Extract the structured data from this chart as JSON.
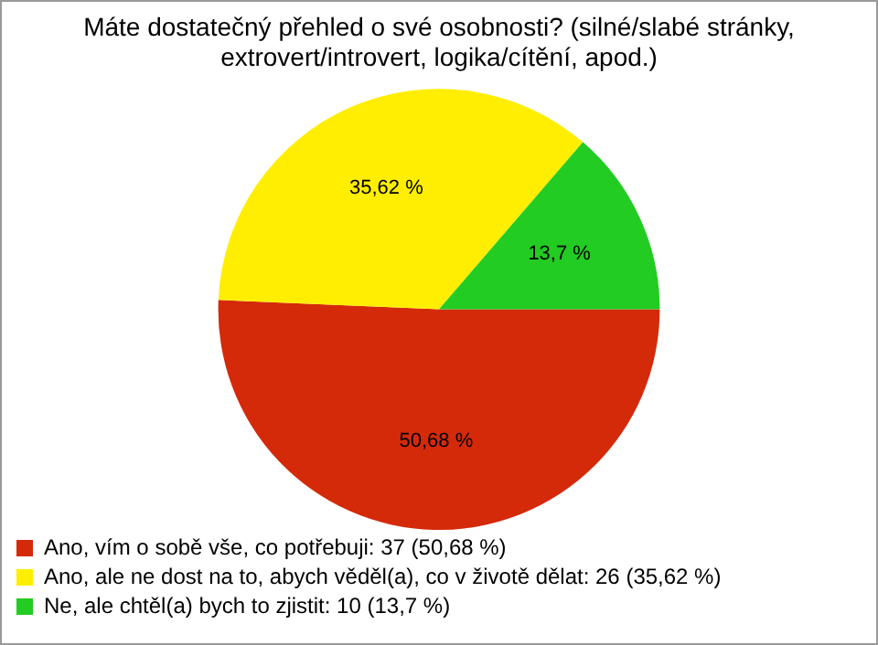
{
  "chart_data": {
    "type": "pie",
    "title": "Máte dostatečný přehled o své osobnosti? (silné/slabé stránky, extrovert/introvert, logika/cítění, apod.)",
    "categories": [
      "Ano, vím o sobě vše, co potřebuji: 37 (50,68 %)",
      "Ano, ale ne dost na to, abych věděl(a), co v životě dělat: 26 (35,62 %)",
      "Ne, ale chtěl(a) bych to zjistit: 10 (13,7 %)"
    ],
    "values": [
      50.68,
      35.62,
      13.7
    ],
    "colors": [
      "#d42a0a",
      "#ffee00",
      "#22cc22"
    ],
    "value_labels": [
      "50,68 %",
      "35,62 %",
      "13,7 %"
    ],
    "legend": "bottom"
  }
}
